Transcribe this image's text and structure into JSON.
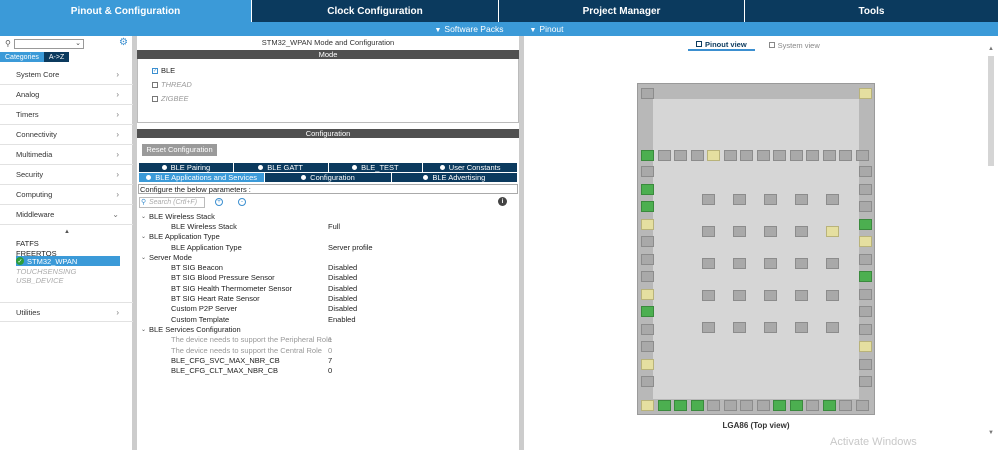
{
  "top_tabs": [
    {
      "label": "Pinout & Configuration",
      "active": true
    },
    {
      "label": "Clock Configuration",
      "active": false
    },
    {
      "label": "Project Manager",
      "active": false
    },
    {
      "label": "Tools",
      "active": false
    }
  ],
  "sub_bar": {
    "software_packs": "Software Packs",
    "pinout": "Pinout"
  },
  "left": {
    "tabs": {
      "categories": "Categories",
      "az": "A->Z"
    },
    "categories": [
      "System Core",
      "Analog",
      "Timers",
      "Connectivity",
      "Multimedia",
      "Security",
      "Computing",
      "Middleware"
    ],
    "middleware_items": [
      {
        "label": "FATFS",
        "state": "normal"
      },
      {
        "label": "FREERTOS",
        "state": "normal"
      },
      {
        "label": "STM32_WPAN",
        "state": "selected"
      },
      {
        "label": "TOUCHSENSING",
        "state": "dim"
      },
      {
        "label": "USB_DEVICE",
        "state": "dim"
      }
    ],
    "utilities": "Utilities"
  },
  "mid": {
    "title": "STM32_WPAN Mode and Configuration",
    "mode_header": "Mode",
    "modes": [
      {
        "label": "BLE",
        "checked": true,
        "enabled": true
      },
      {
        "label": "THREAD",
        "checked": false,
        "enabled": false
      },
      {
        "label": "ZIGBEE",
        "checked": false,
        "enabled": false
      }
    ],
    "config_header": "Configuration",
    "reset_button": "Reset Configuration",
    "tabs_row1": [
      "BLE Pairing",
      "BLE GATT",
      "BLE_TEST",
      "User Constants"
    ],
    "tabs_row2": [
      {
        "label": "BLE Applications and Services",
        "active": true
      },
      {
        "label": "Configuration",
        "active": false
      },
      {
        "label": "BLE Advertising",
        "active": false
      }
    ],
    "param_label": "Configure the below parameters :",
    "search_placeholder": "Search (Crtl+F)",
    "tree": [
      {
        "type": "group",
        "key": "BLE Wireless Stack"
      },
      {
        "type": "leaf",
        "key": "BLE Wireless Stack",
        "value": "Full"
      },
      {
        "type": "group",
        "key": "BLE Application Type"
      },
      {
        "type": "leaf",
        "key": "BLE Application Type",
        "value": "Server profile"
      },
      {
        "type": "group",
        "key": "Server Mode"
      },
      {
        "type": "leaf",
        "key": "BT SIG Beacon",
        "value": "Disabled"
      },
      {
        "type": "leaf",
        "key": "BT SIG Blood Pressure Sensor",
        "value": "Disabled"
      },
      {
        "type": "leaf",
        "key": "BT SIG Health Thermometer Sensor",
        "value": "Disabled"
      },
      {
        "type": "leaf",
        "key": "BT SIG Heart Rate Sensor",
        "value": "Disabled"
      },
      {
        "type": "leaf",
        "key": "Custom P2P Server",
        "value": "Disabled"
      },
      {
        "type": "leaf",
        "key": "Custom Template",
        "value": "Enabled"
      },
      {
        "type": "group",
        "key": "BLE Services Configuration"
      },
      {
        "type": "leaf",
        "key": "The device needs to support the Peripheral Role",
        "value": "1",
        "dim": true
      },
      {
        "type": "leaf",
        "key": "The device needs to support the Central Role",
        "value": "0",
        "dim": true
      },
      {
        "type": "leaf",
        "key": "BLE_CFG_SVC_MAX_NBR_CB",
        "value": "7"
      },
      {
        "type": "leaf",
        "key": "BLE_CFG_CLT_MAX_NBR_CB",
        "value": "0"
      }
    ]
  },
  "right": {
    "view_tabs": [
      {
        "label": "Pinout view",
        "active": true
      },
      {
        "label": "System view",
        "active": false
      }
    ],
    "chip_caption": "LGA86 (Top view)",
    "watermark": "Activate Windows"
  },
  "colors": {
    "dark_blue": "#0b3a5e",
    "light_blue": "#3b9ad8",
    "pin_green": "#4caf50",
    "pin_yellow": "#e5dfa0"
  }
}
